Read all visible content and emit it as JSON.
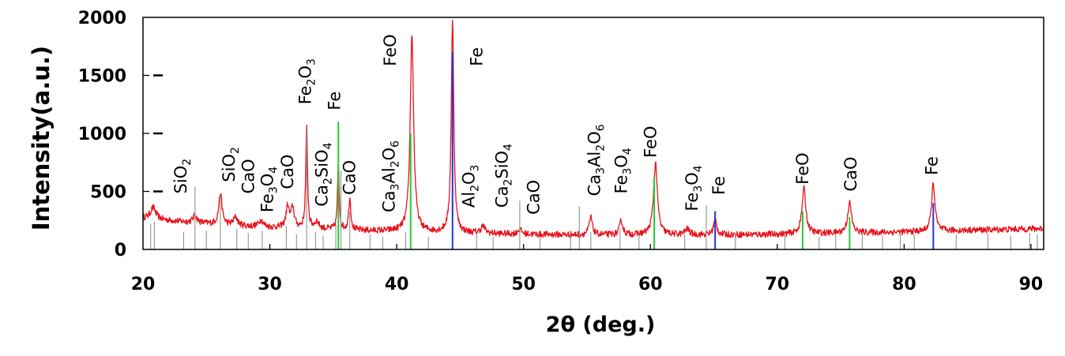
{
  "chart_data": {
    "type": "line",
    "title": "",
    "xlabel": "2θ (deg.)",
    "ylabel": "Intensity(a.u.)",
    "xlim": [
      20,
      91
    ],
    "ylim": [
      0,
      2000
    ],
    "x_ticks": [
      "20",
      "30",
      "40",
      "50",
      "60",
      "70",
      "80",
      "90"
    ],
    "y_ticks": [
      "0",
      "500",
      "1000",
      "1500",
      "2000"
    ],
    "grid": false,
    "colors": {
      "pattern": "#e8141c",
      "fe_ref": "#2233dd",
      "feo_ref": "#22cc33",
      "other_ref": "#999999",
      "frame": "#000000"
    },
    "baseline": [
      {
        "x": 20.0,
        "y": 270
      },
      {
        "x": 22.0,
        "y": 250
      },
      {
        "x": 24.0,
        "y": 230
      },
      {
        "x": 26.0,
        "y": 215
      },
      {
        "x": 28.0,
        "y": 200
      },
      {
        "x": 30.0,
        "y": 190
      },
      {
        "x": 33.0,
        "y": 180
      },
      {
        "x": 36.0,
        "y": 165
      },
      {
        "x": 40.0,
        "y": 155
      },
      {
        "x": 45.0,
        "y": 140
      },
      {
        "x": 50.0,
        "y": 130
      },
      {
        "x": 55.0,
        "y": 125
      },
      {
        "x": 60.0,
        "y": 125
      },
      {
        "x": 65.0,
        "y": 125
      },
      {
        "x": 70.0,
        "y": 130
      },
      {
        "x": 75.0,
        "y": 140
      },
      {
        "x": 80.0,
        "y": 150
      },
      {
        "x": 85.0,
        "y": 165
      },
      {
        "x": 91.0,
        "y": 180
      }
    ],
    "peaks": [
      {
        "x": 20.8,
        "height": 100,
        "width": 0.25
      },
      {
        "x": 24.1,
        "height": 60,
        "width": 0.2
      },
      {
        "x": 26.1,
        "height": 270,
        "width": 0.15
      },
      {
        "x": 27.3,
        "height": 70,
        "width": 0.2
      },
      {
        "x": 29.3,
        "height": 60,
        "width": 0.2
      },
      {
        "x": 31.4,
        "height": 180,
        "width": 0.15
      },
      {
        "x": 31.8,
        "height": 170,
        "width": 0.15
      },
      {
        "x": 32.9,
        "height": 890,
        "width": 0.08
      },
      {
        "x": 33.7,
        "height": 60,
        "width": 0.2
      },
      {
        "x": 35.4,
        "height": 560,
        "width": 0.08
      },
      {
        "x": 36.3,
        "height": 280,
        "width": 0.1
      },
      {
        "x": 41.2,
        "height": 1700,
        "width": 0.16
      },
      {
        "x": 44.4,
        "height": 1820,
        "width": 0.12
      },
      {
        "x": 46.8,
        "height": 60,
        "width": 0.2
      },
      {
        "x": 49.7,
        "height": 40,
        "width": 0.2
      },
      {
        "x": 55.3,
        "height": 150,
        "width": 0.15
      },
      {
        "x": 57.7,
        "height": 120,
        "width": 0.15
      },
      {
        "x": 60.4,
        "height": 620,
        "width": 0.18
      },
      {
        "x": 62.9,
        "height": 50,
        "width": 0.2
      },
      {
        "x": 65.1,
        "height": 130,
        "width": 0.15
      },
      {
        "x": 72.1,
        "height": 390,
        "width": 0.18
      },
      {
        "x": 75.7,
        "height": 260,
        "width": 0.18
      },
      {
        "x": 82.3,
        "height": 410,
        "width": 0.16
      }
    ],
    "reference_lines": [
      {
        "x": 20.6,
        "y": 220,
        "phase": "other"
      },
      {
        "x": 20.9,
        "y": 240,
        "phase": "other"
      },
      {
        "x": 23.2,
        "y": 150,
        "phase": "other"
      },
      {
        "x": 24.1,
        "y": 540,
        "phase": "other"
      },
      {
        "x": 25.0,
        "y": 160,
        "phase": "other"
      },
      {
        "x": 26.1,
        "y": 470,
        "phase": "other"
      },
      {
        "x": 27.4,
        "y": 180,
        "phase": "other"
      },
      {
        "x": 28.3,
        "y": 140,
        "phase": "other"
      },
      {
        "x": 29.4,
        "y": 160,
        "phase": "other"
      },
      {
        "x": 31.3,
        "y": 200,
        "phase": "other"
      },
      {
        "x": 32.1,
        "y": 130,
        "phase": "other"
      },
      {
        "x": 32.9,
        "y": 1060,
        "phase": "other"
      },
      {
        "x": 33.6,
        "y": 150,
        "phase": "other"
      },
      {
        "x": 34.2,
        "y": 120,
        "phase": "other"
      },
      {
        "x": 35.2,
        "y": 210,
        "phase": "other"
      },
      {
        "x": 35.4,
        "y": 1100,
        "phase": "FeO"
      },
      {
        "x": 35.6,
        "y": 680,
        "phase": "other"
      },
      {
        "x": 36.3,
        "y": 330,
        "phase": "other"
      },
      {
        "x": 37.9,
        "y": 130,
        "phase": "other"
      },
      {
        "x": 38.9,
        "y": 110,
        "phase": "other"
      },
      {
        "x": 40.7,
        "y": 150,
        "phase": "other"
      },
      {
        "x": 41.1,
        "y": 1000,
        "phase": "FeO"
      },
      {
        "x": 42.5,
        "y": 110,
        "phase": "other"
      },
      {
        "x": 44.4,
        "y": 1700,
        "phase": "Fe"
      },
      {
        "x": 46.3,
        "y": 130,
        "phase": "other"
      },
      {
        "x": 47.6,
        "y": 110,
        "phase": "other"
      },
      {
        "x": 49.7,
        "y": 420,
        "phase": "other"
      },
      {
        "x": 51.3,
        "y": 110,
        "phase": "other"
      },
      {
        "x": 53.7,
        "y": 120,
        "phase": "other"
      },
      {
        "x": 54.4,
        "y": 370,
        "phase": "other"
      },
      {
        "x": 55.3,
        "y": 150,
        "phase": "other"
      },
      {
        "x": 57.6,
        "y": 180,
        "phase": "other"
      },
      {
        "x": 59.1,
        "y": 130,
        "phase": "other"
      },
      {
        "x": 60.3,
        "y": 620,
        "phase": "FeO"
      },
      {
        "x": 62.7,
        "y": 130,
        "phase": "other"
      },
      {
        "x": 64.4,
        "y": 380,
        "phase": "other"
      },
      {
        "x": 65.1,
        "y": 330,
        "phase": "Fe"
      },
      {
        "x": 66.7,
        "y": 130,
        "phase": "other"
      },
      {
        "x": 70.6,
        "y": 130,
        "phase": "other"
      },
      {
        "x": 72.0,
        "y": 330,
        "phase": "FeO"
      },
      {
        "x": 73.3,
        "y": 110,
        "phase": "other"
      },
      {
        "x": 74.6,
        "y": 140,
        "phase": "other"
      },
      {
        "x": 75.7,
        "y": 280,
        "phase": "FeO"
      },
      {
        "x": 76.7,
        "y": 130,
        "phase": "other"
      },
      {
        "x": 78.3,
        "y": 120,
        "phase": "other"
      },
      {
        "x": 79.7,
        "y": 140,
        "phase": "other"
      },
      {
        "x": 80.8,
        "y": 130,
        "phase": "other"
      },
      {
        "x": 82.3,
        "y": 400,
        "phase": "Fe"
      },
      {
        "x": 84.1,
        "y": 130,
        "phase": "other"
      },
      {
        "x": 86.6,
        "y": 140,
        "phase": "other"
      },
      {
        "x": 88.4,
        "y": 120,
        "phase": "other"
      },
      {
        "x": 89.9,
        "y": 140,
        "phase": "other"
      },
      {
        "x": 90.5,
        "y": 130,
        "phase": "other"
      }
    ],
    "annotations": [
      {
        "id": "sio2-1",
        "base": "SiO",
        "sub": "2",
        "x": 23.0,
        "y": 480
      },
      {
        "id": "sio2-2",
        "base": "SiO",
        "sub": "2",
        "x": 26.8,
        "y": 580
      },
      {
        "id": "cao-1",
        "base": "CaO",
        "sub": "",
        "x": 28.3,
        "y": 480
      },
      {
        "id": "fe3o4-1",
        "base": "Fe",
        "sub": "3",
        "base2": "O",
        "sub2": "4",
        "x": 29.8,
        "y": 320
      },
      {
        "id": "cao-2",
        "base": "CaO",
        "sub": "",
        "x": 31.4,
        "y": 520
      },
      {
        "id": "fe2o3-1",
        "base": "Fe",
        "sub": "2",
        "base2": "O",
        "sub2": "3",
        "x": 32.8,
        "y": 1250
      },
      {
        "id": "ca2sio4-1",
        "base": "Ca",
        "sub": "2",
        "base2": "SiO",
        "sub2": "4",
        "x": 34.1,
        "y": 370
      },
      {
        "id": "fe-1",
        "base": "Fe",
        "sub": "",
        "x": 35.1,
        "y": 1200
      },
      {
        "id": "cao-3",
        "base": "CaO",
        "sub": "",
        "x": 36.3,
        "y": 470
      },
      {
        "id": "ca3al2o6-1",
        "base": "Ca",
        "sub": "3",
        "base2": "Al",
        "sub2": "2",
        "base3": "O",
        "sub3": "6",
        "x": 39.4,
        "y": 320
      },
      {
        "id": "feo-1",
        "base": "FeO",
        "sub": "",
        "x": 39.5,
        "y": 1580
      },
      {
        "id": "fe-2",
        "base": "Fe",
        "sub": "",
        "x": 46.3,
        "y": 1580
      },
      {
        "id": "al2o3-1",
        "base": "Al",
        "sub": "2",
        "base2": "O",
        "sub2": "3",
        "x": 45.7,
        "y": 360
      },
      {
        "id": "ca2sio4-2",
        "base": "Ca",
        "sub": "2",
        "base2": "SiO",
        "sub2": "4",
        "x": 48.3,
        "y": 360
      },
      {
        "id": "cao-4",
        "base": "CaO",
        "sub": "",
        "x": 50.8,
        "y": 300
      },
      {
        "id": "ca3al2o6-2",
        "base": "Ca",
        "sub": "3",
        "base2": "Al",
        "sub2": "2",
        "base3": "O",
        "sub3": "6",
        "x": 55.6,
        "y": 460
      },
      {
        "id": "fe3o4-2",
        "base": "Fe",
        "sub": "3",
        "base2": "O",
        "sub2": "4",
        "x": 57.7,
        "y": 480
      },
      {
        "id": "feo-2",
        "base": "FeO",
        "sub": "",
        "x": 60.0,
        "y": 790
      },
      {
        "id": "fe3o4-3",
        "base": "Fe",
        "sub": "3",
        "base2": "O",
        "sub2": "4",
        "x": 63.3,
        "y": 330
      },
      {
        "id": "fe-3",
        "base": "Fe",
        "sub": "",
        "x": 65.4,
        "y": 470
      },
      {
        "id": "feo-3",
        "base": "FeO",
        "sub": "",
        "x": 72.0,
        "y": 560
      },
      {
        "id": "cao-5",
        "base": "CaO",
        "sub": "",
        "x": 75.8,
        "y": 500
      },
      {
        "id": "fe-4",
        "base": "Fe",
        "sub": "",
        "x": 82.2,
        "y": 640
      }
    ]
  }
}
